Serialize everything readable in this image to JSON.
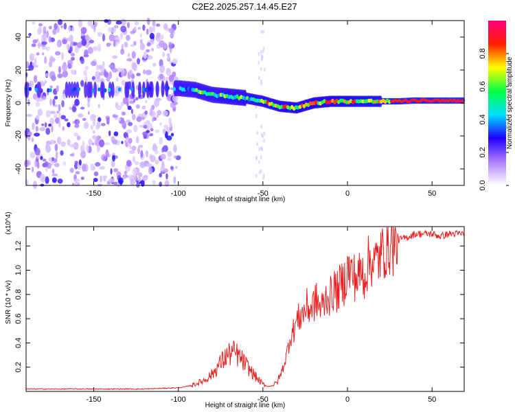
{
  "title": "C2E2.2025.257.14.45.E27",
  "chart_data": [
    {
      "type": "heatmap",
      "xlabel": "Height of straight line (km)",
      "ylabel": "Frequency (Hz)",
      "xlim": [
        -190,
        69
      ],
      "ylim": [
        -50,
        50
      ],
      "xticks": [
        -150,
        -100,
        -50,
        0,
        50
      ],
      "yticks": [
        -40,
        -20,
        0,
        20,
        40
      ],
      "ridge": {
        "x": [
          -190,
          -150,
          -120,
          -100,
          -90,
          -80,
          -70,
          -60,
          -50,
          -40,
          -30,
          -20,
          -10,
          0,
          10,
          20,
          30,
          40,
          50,
          60,
          69
        ],
        "y": [
          8,
          8,
          8,
          9,
          8,
          5,
          4,
          3,
          1,
          -2,
          -3,
          0,
          1,
          1,
          1,
          1,
          1,
          1.5,
          1.5,
          1.5,
          1.5
        ]
      },
      "colorbar": {
        "label": "Normalized spectral amplitude",
        "range": [
          0.0,
          1.0
        ],
        "ticks": [
          "0.0",
          "0.2",
          "0.4",
          "0.6",
          "0.8"
        ],
        "colors": [
          "#ffffff",
          "#b080ff",
          "#2000ff",
          "#00e0ff",
          "#00ff40",
          "#ffff00",
          "#ff2000",
          "#ff0080"
        ]
      }
    },
    {
      "type": "line",
      "xlabel": "Height of straight line (km)",
      "ylabel": "SNR (10 * v/v)",
      "yscale_note": "(x10^4)",
      "xlim": [
        -190,
        69
      ],
      "ylim": [
        0,
        1.36
      ],
      "xticks": [
        -150,
        -100,
        -50,
        0,
        50
      ],
      "yticks": [
        0.2,
        0.4,
        0.6,
        0.8,
        1.0,
        1.2
      ],
      "series": [
        {
          "name": "SNR",
          "color": "#e82020",
          "x": [
            -190,
            -180,
            -160,
            -140,
            -120,
            -100,
            -95,
            -90,
            -85,
            -80,
            -77,
            -74,
            -71,
            -68,
            -65,
            -62,
            -59,
            -56,
            -53,
            -50,
            -47,
            -44,
            -42,
            -40,
            -38,
            -36,
            -34,
            -32,
            -30,
            -28,
            -26,
            -24,
            -22,
            -20,
            -18,
            -16,
            -14,
            -12,
            -10,
            -8,
            -6,
            -4,
            -2,
            0,
            2,
            4,
            6,
            8,
            10,
            12,
            14,
            16,
            18,
            20,
            22,
            24,
            26,
            28,
            30,
            35,
            40,
            45,
            50,
            55,
            60,
            65,
            69
          ],
          "y": [
            0.02,
            0.02,
            0.02,
            0.02,
            0.02,
            0.03,
            0.04,
            0.06,
            0.09,
            0.14,
            0.2,
            0.25,
            0.3,
            0.32,
            0.3,
            0.25,
            0.2,
            0.15,
            0.1,
            0.06,
            0.04,
            0.05,
            0.07,
            0.12,
            0.2,
            0.3,
            0.45,
            0.5,
            0.58,
            0.62,
            0.65,
            0.7,
            0.68,
            0.72,
            0.75,
            0.68,
            0.72,
            0.8,
            0.78,
            0.85,
            0.82,
            0.88,
            0.9,
            1.0,
            0.98,
            0.95,
            0.92,
            1.0,
            0.95,
            1.05,
            1.1,
            1.05,
            1.1,
            1.12,
            1.18,
            1.2,
            1.22,
            1.2,
            1.25,
            1.27,
            1.3,
            1.3,
            1.3,
            1.28,
            1.3,
            1.3,
            1.3
          ]
        }
      ]
    }
  ]
}
